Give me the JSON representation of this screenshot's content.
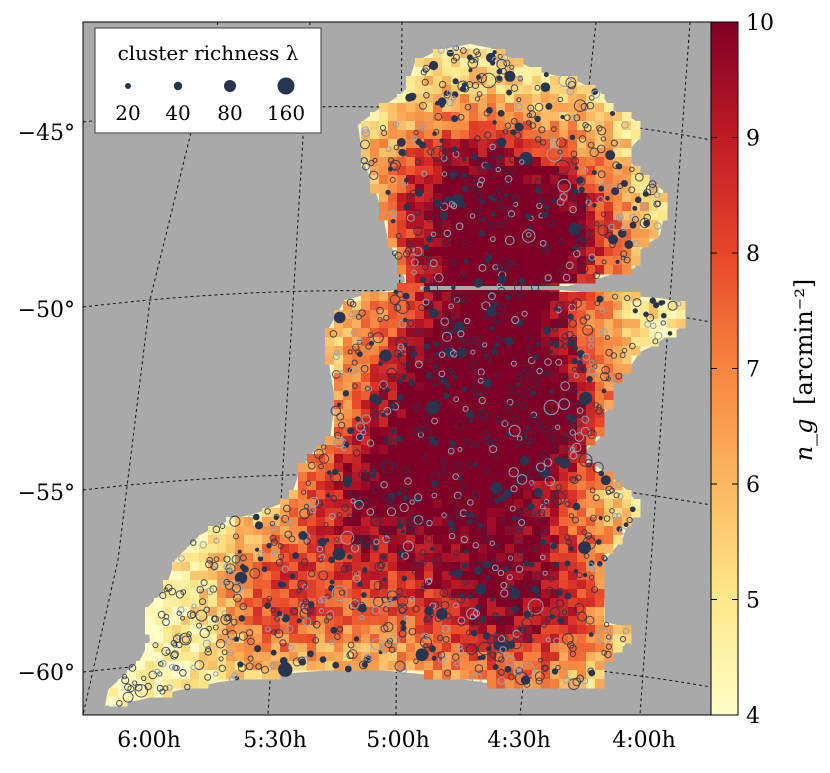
{
  "chart_data": {
    "type": "heatmap",
    "title": "",
    "xlabel": "",
    "ylabel": "",
    "x_ticks": [
      "6:00h",
      "5:30h",
      "5:00h",
      "4:30h",
      "4:00h"
    ],
    "y_ticks": [
      "−45°",
      "−50°",
      "−55°",
      "−60°"
    ],
    "ra_range_hours": [
      3.75,
      6.3
    ],
    "dec_range_deg": [
      -61.2,
      -42.5
    ],
    "grid": "dashed",
    "background_color": "#a9a9a9",
    "colorbar": {
      "label_math": "n_g",
      "label_unit": "[arcmin⁻²]",
      "min": 4,
      "max": 10,
      "ticks": [
        "4",
        "5",
        "6",
        "7",
        "8",
        "9",
        "10"
      ],
      "colormap": [
        "#fffdc6",
        "#fee88b",
        "#fcb761",
        "#f7853f",
        "#e8462a",
        "#c01b26",
        "#7f0026"
      ]
    },
    "legend": {
      "title": "cluster richness λ",
      "position": "top-left",
      "entries": [
        {
          "label": "20",
          "richness": 20
        },
        {
          "label": "40",
          "richness": 40
        },
        {
          "label": "80",
          "richness": 80
        },
        {
          "label": "160",
          "richness": 160
        }
      ]
    },
    "cluster_marker_color": "#273550"
  }
}
